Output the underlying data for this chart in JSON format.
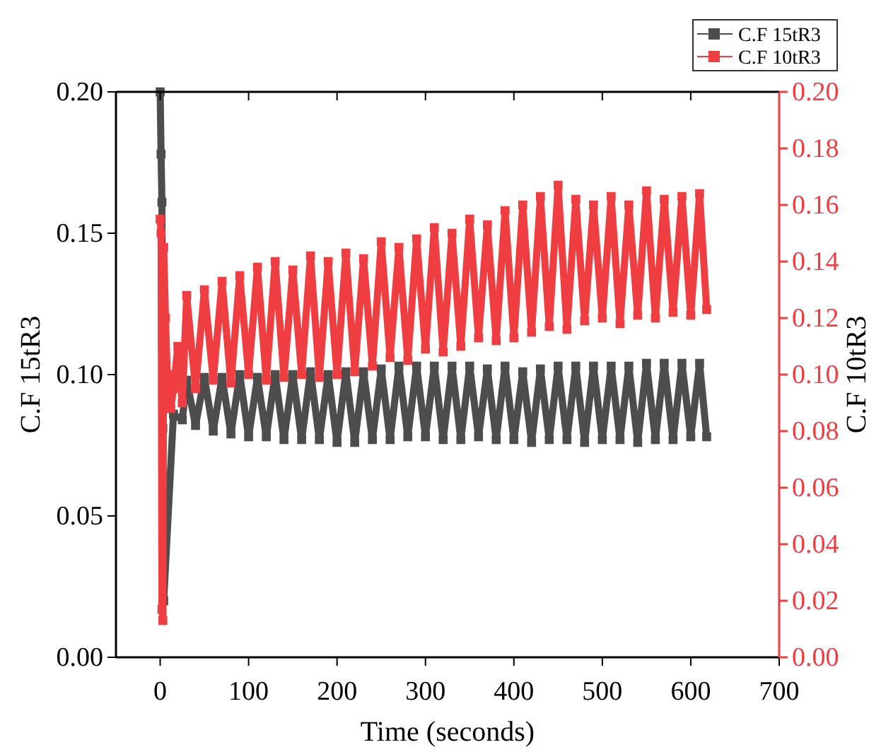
{
  "chart_data": {
    "type": "line",
    "xlabel": "Time (seconds)",
    "ylabel": "C.F 15tR3",
    "y2label": "C.F 10tR3",
    "xlim": [
      -50,
      700
    ],
    "xticks": [
      0,
      100,
      200,
      300,
      400,
      500,
      600,
      700
    ],
    "ylim": [
      0,
      0.2
    ],
    "yticks": [
      {
        "value": 0,
        "label": "0.00"
      },
      {
        "value": 0.05,
        "label": "0.05"
      },
      {
        "value": 0.1,
        "label": "0.10"
      },
      {
        "value": 0.15,
        "label": "0.15"
      },
      {
        "value": 0.2,
        "label": "0.20"
      }
    ],
    "y2lim": [
      0,
      0.2
    ],
    "y2ticks": [
      {
        "value": 0,
        "label": "0.00"
      },
      {
        "value": 0.02,
        "label": "0.02"
      },
      {
        "value": 0.04,
        "label": "0.04"
      },
      {
        "value": 0.06,
        "label": "0.06"
      },
      {
        "value": 0.08,
        "label": "0.08"
      },
      {
        "value": 0.1,
        "label": "0.10"
      },
      {
        "value": 0.12,
        "label": "0.12"
      },
      {
        "value": 0.14,
        "label": "0.14"
      },
      {
        "value": 0.16,
        "label": "0.16"
      },
      {
        "value": 0.18,
        "label": "0.18"
      },
      {
        "value": 0.2,
        "label": "0.20"
      }
    ],
    "legend": "top right",
    "marker": "square",
    "line_style": "solid",
    "grid": false,
    "series": [
      {
        "name": "C.F 15tR3",
        "color": "#4d4d4d",
        "x": [
          0,
          1,
          2,
          3,
          4,
          15,
          25,
          30,
          40,
          50,
          60,
          70,
          80,
          90,
          100,
          110,
          120,
          130,
          140,
          150,
          160,
          170,
          180,
          190,
          200,
          210,
          220,
          230,
          240,
          250,
          260,
          270,
          280,
          290,
          300,
          310,
          320,
          330,
          340,
          350,
          360,
          370,
          380,
          390,
          400,
          410,
          420,
          430,
          440,
          450,
          460,
          470,
          480,
          490,
          500,
          510,
          520,
          530,
          540,
          550,
          560,
          570,
          580,
          590,
          600,
          610,
          618
        ],
        "values": [
          0.2,
          0.178,
          0.161,
          0.081,
          0.02,
          0.086,
          0.084,
          0.098,
          0.082,
          0.099,
          0.08,
          0.099,
          0.079,
          0.1,
          0.078,
          0.099,
          0.078,
          0.1,
          0.077,
          0.1,
          0.077,
          0.101,
          0.077,
          0.1,
          0.076,
          0.101,
          0.076,
          0.101,
          0.077,
          0.102,
          0.077,
          0.103,
          0.078,
          0.103,
          0.078,
          0.103,
          0.077,
          0.103,
          0.077,
          0.103,
          0.078,
          0.102,
          0.077,
          0.103,
          0.077,
          0.101,
          0.076,
          0.102,
          0.077,
          0.103,
          0.077,
          0.103,
          0.076,
          0.103,
          0.077,
          0.103,
          0.077,
          0.103,
          0.076,
          0.104,
          0.077,
          0.104,
          0.077,
          0.104,
          0.078,
          0.104,
          0.078
        ]
      },
      {
        "name": "C.F 10tR3",
        "color": "#ef3e42",
        "axis": "y2",
        "x": [
          0,
          1,
          2,
          3,
          4,
          6,
          8,
          10,
          12,
          15,
          20,
          25,
          30,
          40,
          50,
          60,
          70,
          80,
          90,
          100,
          110,
          120,
          130,
          140,
          150,
          160,
          170,
          180,
          190,
          200,
          210,
          220,
          230,
          240,
          250,
          260,
          270,
          280,
          290,
          300,
          310,
          320,
          330,
          340,
          350,
          360,
          370,
          380,
          390,
          400,
          410,
          420,
          430,
          440,
          450,
          460,
          470,
          480,
          490,
          500,
          510,
          520,
          530,
          540,
          550,
          560,
          570,
          580,
          590,
          600,
          610,
          618
        ],
        "values": [
          0.155,
          0.15,
          0.017,
          0.013,
          0.145,
          0.12,
          0.1,
          0.092,
          0.088,
          0.095,
          0.11,
          0.09,
          0.128,
          0.095,
          0.13,
          0.098,
          0.133,
          0.097,
          0.135,
          0.1,
          0.138,
          0.098,
          0.14,
          0.099,
          0.137,
          0.1,
          0.142,
          0.099,
          0.14,
          0.1,
          0.143,
          0.101,
          0.141,
          0.103,
          0.147,
          0.106,
          0.145,
          0.105,
          0.148,
          0.109,
          0.152,
          0.108,
          0.15,
          0.11,
          0.155,
          0.113,
          0.153,
          0.112,
          0.158,
          0.113,
          0.16,
          0.115,
          0.163,
          0.117,
          0.167,
          0.116,
          0.162,
          0.119,
          0.16,
          0.12,
          0.163,
          0.118,
          0.16,
          0.121,
          0.165,
          0.12,
          0.162,
          0.122,
          0.163,
          0.121,
          0.164,
          0.123
        ]
      }
    ]
  }
}
